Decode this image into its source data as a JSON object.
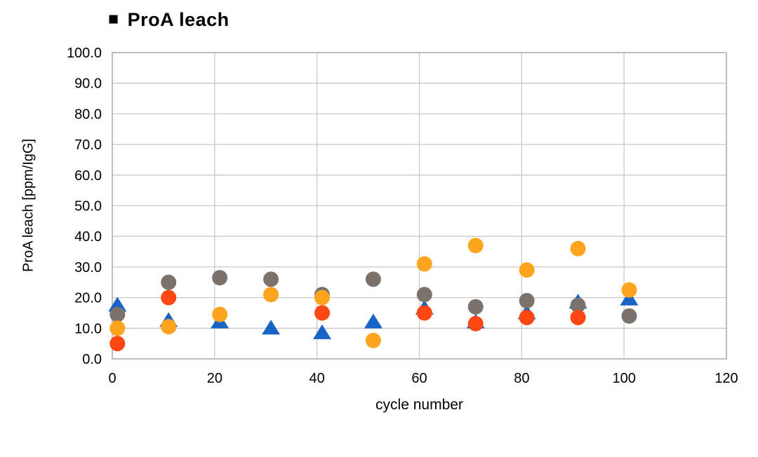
{
  "title": {
    "bullet": "■",
    "text": "ProA leach"
  },
  "chart_data": {
    "type": "scatter",
    "title": "ProA leach",
    "xlabel": "cycle number",
    "ylabel": "ProA leach [ppm/IgG]",
    "xlim": [
      0,
      120
    ],
    "ylim": [
      0,
      100
    ],
    "x_ticks": [
      0,
      20,
      40,
      60,
      80,
      100,
      120
    ],
    "x_tick_labels": [
      "0",
      "20",
      "40",
      "60",
      "80",
      "100",
      "120"
    ],
    "y_ticks": [
      0,
      10,
      20,
      30,
      40,
      50,
      60,
      70,
      80,
      90,
      100
    ],
    "y_tick_labels": [
      "0.0",
      "10.0",
      "20.0",
      "30.0",
      "40.0",
      "50.0",
      "60.0",
      "70.0",
      "80.0",
      "90.0",
      "100.0"
    ],
    "grid": true,
    "legend_position": "none",
    "colors": {
      "grid": "#C9C9C9",
      "border": "#ADADAD",
      "blue": "#1864C6",
      "gray": "#7B736B",
      "red": "#FF4713",
      "yellow": "#FFA41D"
    },
    "series": [
      {
        "name": "blue-triangle",
        "marker": "triangle",
        "color_key": "blue",
        "points": [
          [
            1,
            17.5
          ],
          [
            11,
            12.5
          ],
          [
            21,
            12
          ],
          [
            31,
            10
          ],
          [
            41,
            8.5
          ],
          [
            51,
            12
          ],
          [
            61,
            16.5
          ],
          [
            71,
            12
          ],
          [
            81,
            15
          ],
          [
            91,
            18.5
          ],
          [
            101,
            19.5
          ]
        ]
      },
      {
        "name": "gray-circle",
        "marker": "circle",
        "color_key": "gray",
        "points": [
          [
            1,
            14.5
          ],
          [
            11,
            25
          ],
          [
            21,
            26.5
          ],
          [
            31,
            26
          ],
          [
            41,
            21
          ],
          [
            51,
            26
          ],
          [
            61,
            21
          ],
          [
            71,
            17
          ],
          [
            81,
            19
          ],
          [
            91,
            17.5
          ],
          [
            101,
            14
          ]
        ]
      },
      {
        "name": "red-circle",
        "marker": "circle",
        "color_key": "red",
        "points": [
          [
            1,
            5
          ],
          [
            11,
            20
          ],
          [
            41,
            15
          ],
          [
            61,
            15
          ],
          [
            71,
            11.5
          ],
          [
            81,
            13.5
          ],
          [
            91,
            13.5
          ]
        ]
      },
      {
        "name": "yellow-circle",
        "marker": "circle",
        "color_key": "yellow",
        "points": [
          [
            1,
            10
          ],
          [
            11,
            10.5
          ],
          [
            21,
            14.5
          ],
          [
            31,
            21
          ],
          [
            41,
            20
          ],
          [
            51,
            6
          ],
          [
            61,
            31
          ],
          [
            71,
            37
          ],
          [
            81,
            29
          ],
          [
            91,
            36
          ],
          [
            101,
            22.5
          ]
        ]
      }
    ]
  }
}
